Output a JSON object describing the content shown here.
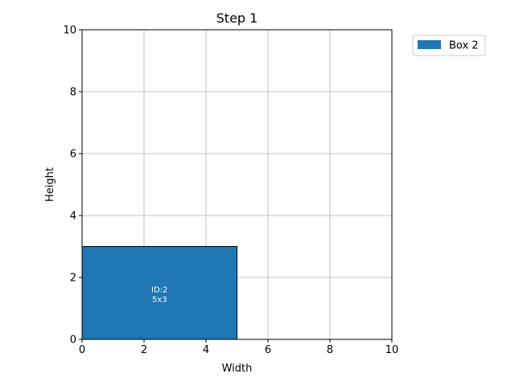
{
  "chart_data": {
    "type": "rectangle-packing",
    "title": "Step 1",
    "xlabel": "Width",
    "ylabel": "Height",
    "xlim": [
      0,
      10
    ],
    "ylim": [
      0,
      10
    ],
    "xticks": [
      "0",
      "2",
      "4",
      "6",
      "8",
      "10"
    ],
    "yticks": [
      "0",
      "2",
      "4",
      "6",
      "8",
      "10"
    ],
    "grid": true,
    "legend_position": "outside-top-right",
    "boxes": [
      {
        "name": "Box 2",
        "id_text": "ID:2",
        "size_text": "5x3",
        "x": 0,
        "y": 0,
        "width": 5,
        "height": 3,
        "color": "#1f77b4"
      }
    ]
  }
}
